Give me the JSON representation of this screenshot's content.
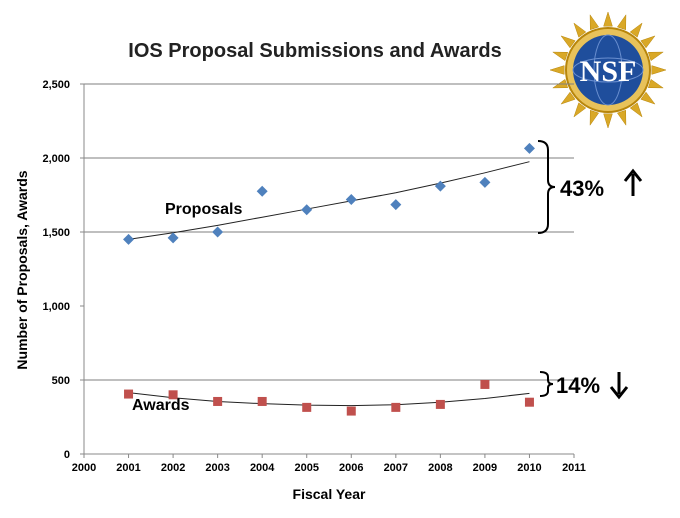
{
  "chart_data": {
    "type": "scatter",
    "title": "IOS Proposal Submissions and Awards",
    "xlabel": "Fiscal Year",
    "ylabel": "Number of Proposals, Awards",
    "xlim": [
      2000,
      2011
    ],
    "ylim": [
      0,
      2500
    ],
    "x_ticks": [
      "2000",
      "2001",
      "2002",
      "2003",
      "2004",
      "2005",
      "2006",
      "2007",
      "2008",
      "2009",
      "2010",
      "2011"
    ],
    "y_ticks": [
      "0",
      "500",
      "1,000",
      "1,500",
      "2,000",
      "2,500"
    ],
    "y_tick_values": [
      0,
      500,
      1000,
      1500,
      2000,
      2500
    ],
    "gridlines": [
      500,
      1500,
      2000,
      2500
    ],
    "series": [
      {
        "name": "Proposals",
        "marker": "diamond",
        "color": "#4F81BD",
        "x": [
          2001,
          2002,
          2003,
          2004,
          2005,
          2006,
          2007,
          2008,
          2009,
          2010
        ],
        "values": [
          1450,
          1460,
          1500,
          1775,
          1650,
          1720,
          1685,
          1810,
          1835,
          2065
        ],
        "trend": [
          1450,
          1495,
          1545,
          1600,
          1655,
          1710,
          1765,
          1830,
          1900,
          1975
        ]
      },
      {
        "name": "Awards",
        "marker": "square",
        "color": "#C0504D",
        "x": [
          2001,
          2002,
          2003,
          2004,
          2005,
          2006,
          2007,
          2008,
          2009,
          2010
        ],
        "values": [
          405,
          400,
          355,
          355,
          315,
          290,
          315,
          335,
          470,
          350
        ],
        "trend": [
          415,
          380,
          355,
          340,
          330,
          327,
          333,
          350,
          375,
          410
        ]
      }
    ],
    "annotations": [
      {
        "text": "43%",
        "arrow": "up"
      },
      {
        "text": "14%",
        "arrow": "down"
      }
    ]
  },
  "logo": {
    "text": "NSF",
    "colors": {
      "ring": "#D4A017",
      "globe": "#1F4E9C"
    }
  }
}
